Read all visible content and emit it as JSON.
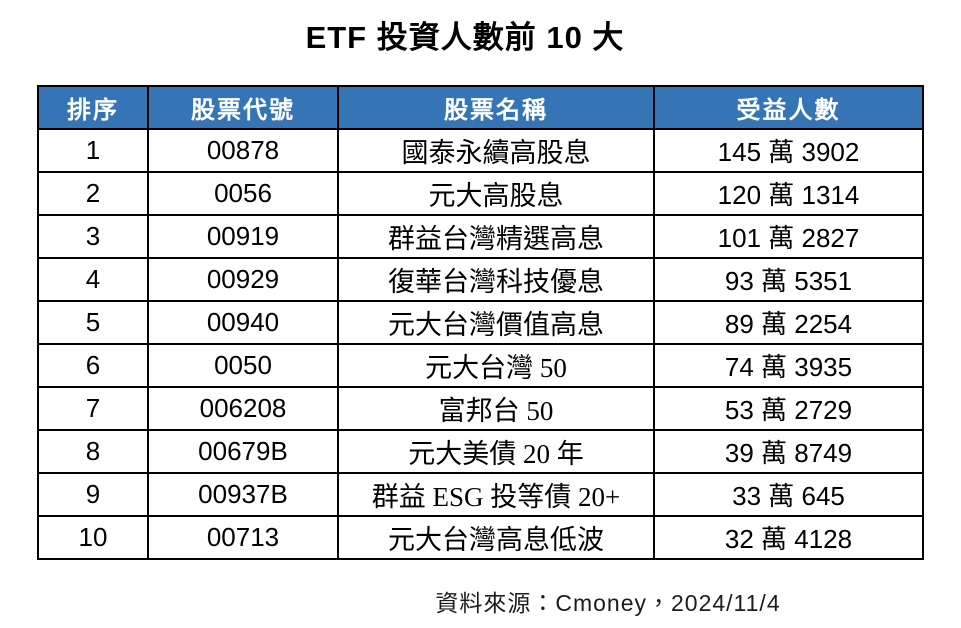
{
  "chart_data": {
    "type": "table",
    "title": "ETF 投資人數前 10 大",
    "columns": [
      "排序",
      "股票代號",
      "股票名稱",
      "受益人數"
    ],
    "rows": [
      [
        "1",
        "00878",
        "國泰永續高股息",
        "145 萬 3902"
      ],
      [
        "2",
        "0056",
        "元大高股息",
        "120 萬 1314"
      ],
      [
        "3",
        "00919",
        "群益台灣精選高息",
        "101 萬 2827"
      ],
      [
        "4",
        "00929",
        "復華台灣科技優息",
        "93 萬 5351"
      ],
      [
        "5",
        "00940",
        "元大台灣價值高息",
        "89 萬 2254"
      ],
      [
        "6",
        "0050",
        "元大台灣 50",
        "74 萬 3935"
      ],
      [
        "7",
        "006208",
        "富邦台 50",
        "53 萬 2729"
      ],
      [
        "8",
        "00679B",
        "元大美債 20 年",
        "39 萬 8749"
      ],
      [
        "9",
        "00937B",
        "群益 ESG 投等債 20+",
        "33 萬 645"
      ],
      [
        "10",
        "00713",
        "元大台灣高息低波",
        "32 萬 4128"
      ]
    ],
    "source_note": "資料來源：Cmoney，2024/11/4",
    "layout": {
      "legend": "none",
      "grid": "full-borders",
      "header_position": "top"
    }
  },
  "colors": {
    "header_bg": "#3675B5",
    "header_text": "#FFFFFF",
    "header_divider": "#141937",
    "border": "#000000",
    "body_bg": "#FFFFFF",
    "body_text": "#000000"
  }
}
